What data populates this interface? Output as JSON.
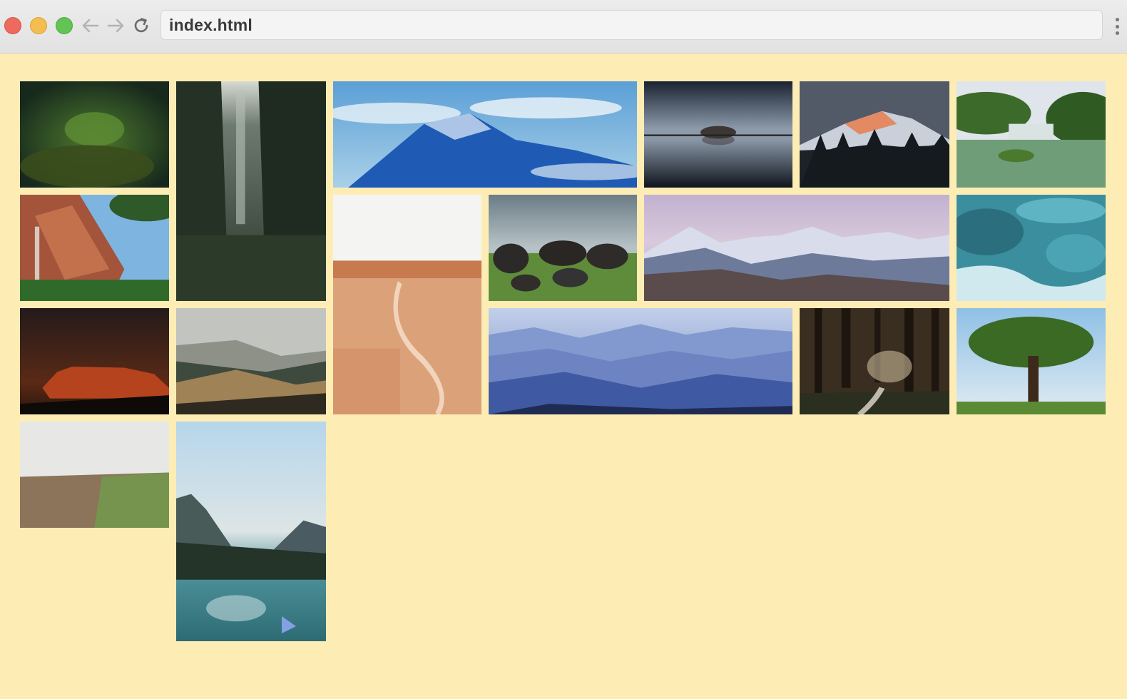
{
  "browser": {
    "url": "index.html",
    "icons": {
      "close": "close-window-icon",
      "minimize": "minimize-window-icon",
      "zoom": "zoom-window-icon",
      "back": "arrow-left-icon",
      "forward": "arrow-right-icon",
      "reload": "reload-icon",
      "menu": "more-vertical-icon"
    },
    "traffic_light_colors": [
      "#ee6a5f",
      "#f5bd4f",
      "#61c454"
    ]
  },
  "page": {
    "background": "#fdedb5"
  },
  "gallery": {
    "photos": [
      {
        "subject": "moss-forest"
      },
      {
        "subject": "waterfall-forest"
      },
      {
        "subject": "aerial-mountains-clouds"
      },
      {
        "subject": "lake-reflection"
      },
      {
        "subject": "alpenglow-peak"
      },
      {
        "subject": "waterfall-pool"
      },
      {
        "subject": "red-canyon"
      },
      {
        "subject": "desert-trail"
      },
      {
        "subject": "boulder-field"
      },
      {
        "subject": "alpine-panorama"
      },
      {
        "subject": "turquoise-river"
      },
      {
        "subject": "night-rock"
      },
      {
        "subject": "rolling-hills"
      },
      {
        "subject": "blue-mountain-layers"
      },
      {
        "subject": "forest-path"
      },
      {
        "subject": "oak-tree"
      },
      {
        "subject": "farm-field"
      },
      {
        "subject": "mountain-lake"
      }
    ]
  }
}
